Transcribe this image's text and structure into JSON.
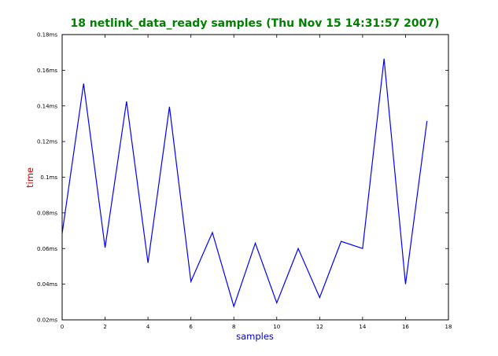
{
  "chart_data": {
    "type": "line",
    "title": "18 netlink_data_ready samples (Thu Nov 15 14:31:57 2007)",
    "xlabel": "samples",
    "ylabel": "time",
    "xlim": [
      0,
      18
    ],
    "ylim": [
      0.02,
      0.18
    ],
    "x_ticks": [
      0,
      2,
      4,
      6,
      8,
      10,
      12,
      14,
      16,
      18
    ],
    "y_ticks": [
      {
        "value": 0.02,
        "label": "0.02ms"
      },
      {
        "value": 0.04,
        "label": "0.04ms"
      },
      {
        "value": 0.06,
        "label": "0.06ms"
      },
      {
        "value": 0.08,
        "label": "0.08ms"
      },
      {
        "value": 0.1,
        "label": "0.1ms"
      },
      {
        "value": 0.12,
        "label": "0.12ms"
      },
      {
        "value": 0.14,
        "label": "0.14ms"
      },
      {
        "value": 0.16,
        "label": "0.16ms"
      },
      {
        "value": 0.18,
        "label": "0.18ms"
      }
    ],
    "grid": false,
    "series": [
      {
        "x": [
          0,
          1,
          2,
          3,
          4,
          5,
          6,
          7,
          8,
          9,
          10,
          11,
          12,
          13,
          14,
          15,
          16,
          17
        ],
        "values": [
          0.0685,
          0.1525,
          0.0605,
          0.1425,
          0.052,
          0.1395,
          0.0415,
          0.069,
          0.0275,
          0.063,
          0.0295,
          0.06,
          0.0325,
          0.064,
          0.06,
          0.1665,
          0.04,
          0.1315
        ],
        "color": "#0000ff"
      }
    ],
    "colors": {
      "title": "#008000",
      "xlabel": "#0000cc",
      "ylabel": "#cc0000",
      "line": "#0000ff"
    }
  }
}
